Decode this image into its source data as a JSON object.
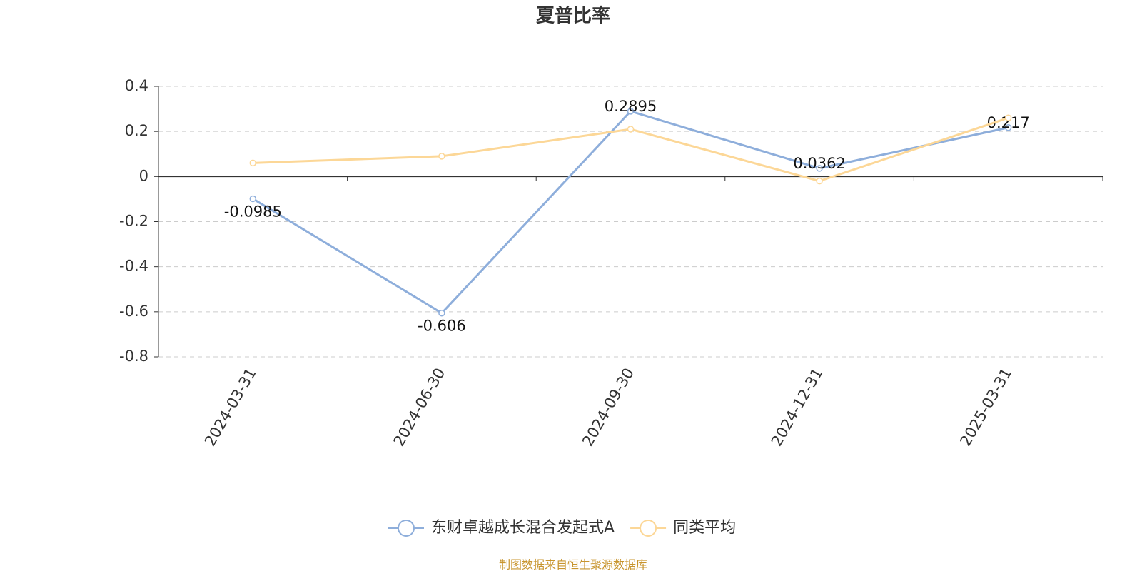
{
  "chart_data": {
    "type": "line",
    "title": "夏普比率",
    "categories": [
      "2024-03-31",
      "2024-06-30",
      "2024-09-30",
      "2024-12-31",
      "2025-03-31"
    ],
    "series": [
      {
        "name": "东财卓越成长混合发起式A",
        "color": "#8eaedb",
        "values": [
          -0.0985,
          -0.606,
          0.2895,
          0.0362,
          0.217
        ]
      },
      {
        "name": "同类平均",
        "color": "#fcd797",
        "values": [
          0.06,
          0.09,
          0.21,
          -0.02,
          0.26
        ]
      }
    ],
    "ylim": [
      -0.8,
      0.4
    ],
    "yticks": [
      0.4,
      0.2,
      0,
      -0.2,
      -0.4,
      -0.6,
      -0.8
    ],
    "grid": true,
    "legend": "bottom",
    "source": "制图数据来自恒生聚源数据库"
  }
}
